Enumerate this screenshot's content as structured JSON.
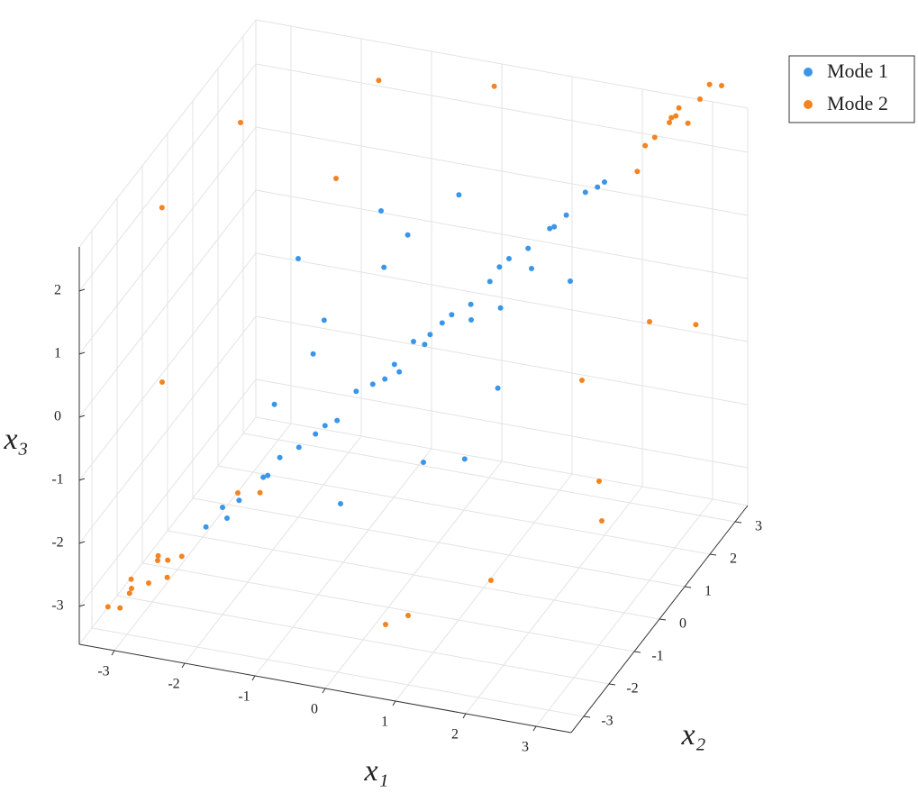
{
  "chart_data": {
    "type": "scatter3d",
    "xlabel": "x₁",
    "ylabel": "x₂",
    "zlabel": "x₃",
    "xlim": [
      -3.5,
      3.5
    ],
    "ylim": [
      -3.5,
      3.5
    ],
    "zlim": [
      -3.6,
      2.7
    ],
    "xticks": [
      -3,
      -2,
      -1,
      0,
      1,
      2,
      3
    ],
    "yticks": [
      -3,
      -2,
      -1,
      0,
      1,
      2,
      3
    ],
    "zticks": [
      -3,
      -2,
      -1,
      0,
      1,
      2
    ],
    "grid": true,
    "legend": "outside-top-right",
    "series": [
      {
        "name": "Mode 1",
        "color": "#3a96e8",
        "x": [
          -2.2,
          -2.0,
          -1.8,
          -1.6,
          -1.4,
          -1.2,
          -1.0,
          -0.8,
          -0.6,
          -0.4,
          -0.2,
          0.0,
          0.2,
          0.4,
          0.6,
          0.8,
          1.0,
          1.2,
          1.4,
          1.6,
          1.8,
          2.0,
          -1.9,
          -1.5,
          -0.9,
          -0.3,
          0.3,
          0.9,
          1.5,
          1.9,
          -1.5,
          -2.0,
          -0.5,
          0.5,
          1.2,
          -1.0,
          0.0,
          1.0,
          -0.6,
          0.7,
          1.5,
          -1.2,
          0.3,
          -0.2,
          1.8,
          -1.8,
          0.8,
          -0.8
        ],
        "y": [
          -2.1,
          -2.0,
          -1.9,
          -1.5,
          -1.4,
          -1.2,
          -1.1,
          -0.8,
          -0.6,
          -0.5,
          -0.2,
          0.0,
          0.1,
          0.4,
          0.6,
          0.8,
          1.0,
          1.2,
          1.5,
          1.6,
          1.8,
          2.0,
          -2.1,
          -1.6,
          -1.0,
          -0.3,
          0.3,
          0.9,
          1.4,
          2.0,
          0.2,
          1.0,
          -1.5,
          -1.0,
          0.0,
          1.5,
          1.8,
          -0.5,
          0.5,
          1.5,
          0.5,
          -0.2,
          -1.4,
          1.0,
          1.2,
          -0.5,
          -0.2,
          2.0
        ],
        "z": [
          -2.2,
          -1.9,
          -1.8,
          -1.6,
          -1.3,
          -1.2,
          -1.0,
          -0.9,
          -0.5,
          -0.4,
          -0.2,
          0.1,
          0.2,
          0.4,
          0.5,
          0.8,
          1.1,
          1.2,
          1.4,
          1.6,
          1.9,
          2.0,
          -2.0,
          -1.5,
          -0.9,
          -0.4,
          0.3,
          1.0,
          1.5,
          1.9,
          -0.5,
          0.5,
          -1.8,
          -1.2,
          -0.4,
          1.2,
          1.5,
          0.9,
          0.9,
          0.0,
          1.3,
          0.3,
          0.4,
          -0.5,
          0.8,
          -1.0,
          -1.5,
          0.6
        ]
      },
      {
        "name": "Mode 2",
        "color": "#f5831f",
        "x": [
          -2.6,
          -2.8,
          -2.5,
          -3.0,
          -2.7,
          -2.9,
          -3.1,
          -2.6,
          -2.4,
          -3.2,
          2.5,
          2.7,
          2.9,
          2.6,
          3.0,
          2.8,
          3.1,
          2.4,
          3.2,
          2.7,
          -3.4,
          -2.5,
          -1.0,
          2.0,
          3.0,
          -3.0,
          -2.0,
          0.0,
          1.5,
          3.0,
          -3.3,
          1.0,
          2.5,
          -1.5,
          3.3,
          0.5,
          -2.5,
          2.0
        ],
        "y": [
          -2.5,
          -2.7,
          -2.8,
          -2.9,
          -2.6,
          -3.1,
          -3.0,
          -2.9,
          -2.5,
          -3.2,
          2.6,
          2.7,
          2.8,
          2.9,
          3.0,
          2.6,
          3.1,
          2.5,
          3.3,
          3.0,
          -0.5,
          -3.0,
          -3.3,
          -2.5,
          -1.0,
          1.5,
          2.5,
          3.2,
          2.5,
          1.0,
          -2.0,
          -3.0,
          0.5,
          2.8,
          2.0,
          -2.5,
          0.0,
          3.3
        ],
        "z": [
          -2.6,
          -2.9,
          -2.7,
          -3.0,
          -2.5,
          -2.8,
          -3.2,
          -2.4,
          -2.5,
          -3.1,
          2.5,
          2.8,
          2.7,
          2.6,
          3.0,
          2.9,
          3.2,
          2.4,
          3.1,
          2.8,
          1.8,
          0.5,
          -0.8,
          -2.0,
          -1.0,
          2.2,
          1.0,
          2.5,
          -1.5,
          0.5,
          -3.3,
          -2.5,
          -2.5,
          2.5,
          0.0,
          -3.0,
          -2.8,
          1.5
        ]
      }
    ]
  }
}
